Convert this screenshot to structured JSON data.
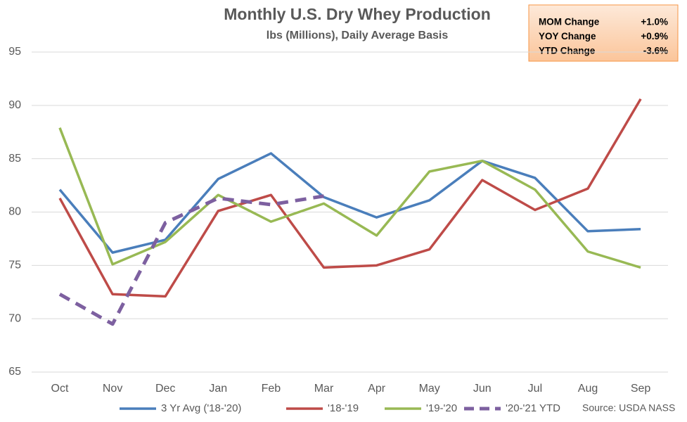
{
  "chart_data": {
    "type": "line",
    "title": "Monthly U.S. Dry Whey Production",
    "subtitle": "lbs (Millions), Daily Average Basis",
    "categories": [
      "Oct",
      "Nov",
      "Dec",
      "Jan",
      "Feb",
      "Mar",
      "Apr",
      "May",
      "Jun",
      "Jul",
      "Aug",
      "Sep"
    ],
    "series": [
      {
        "name": "3 Yr Avg ('18-'20)",
        "color": "#4a7ebb",
        "dashed": false,
        "values": [
          82.1,
          76.2,
          77.4,
          83.1,
          85.5,
          81.4,
          79.5,
          81.1,
          84.8,
          83.2,
          78.2,
          78.4
        ]
      },
      {
        "name": "'18-'19",
        "color": "#be4b48",
        "dashed": false,
        "values": [
          81.3,
          72.3,
          72.1,
          80.1,
          81.6,
          74.8,
          75.0,
          76.5,
          83.0,
          80.2,
          82.2,
          90.6
        ]
      },
      {
        "name": "'19-'20",
        "color": "#98b954",
        "dashed": false,
        "values": [
          87.9,
          75.1,
          77.2,
          81.6,
          79.1,
          80.8,
          77.8,
          83.8,
          84.8,
          82.1,
          76.3,
          74.8
        ]
      },
      {
        "name": "'20-'21 YTD",
        "color": "#7d60a0",
        "dashed": true,
        "values": [
          72.3,
          69.5,
          79.0,
          81.3,
          80.7,
          81.5,
          null,
          null,
          null,
          null,
          null,
          null
        ]
      }
    ],
    "ylim": [
      65,
      95
    ],
    "yticks": [
      65,
      70,
      75,
      80,
      85,
      90,
      95
    ],
    "grid": true,
    "legend": "bottom",
    "source": "Source: USDA NASS",
    "summary_table": [
      [
        "MOM Change",
        "+1.0%"
      ],
      [
        "YOY Change",
        "+0.9%"
      ],
      [
        "YTD Change",
        "-3.6%"
      ]
    ]
  }
}
